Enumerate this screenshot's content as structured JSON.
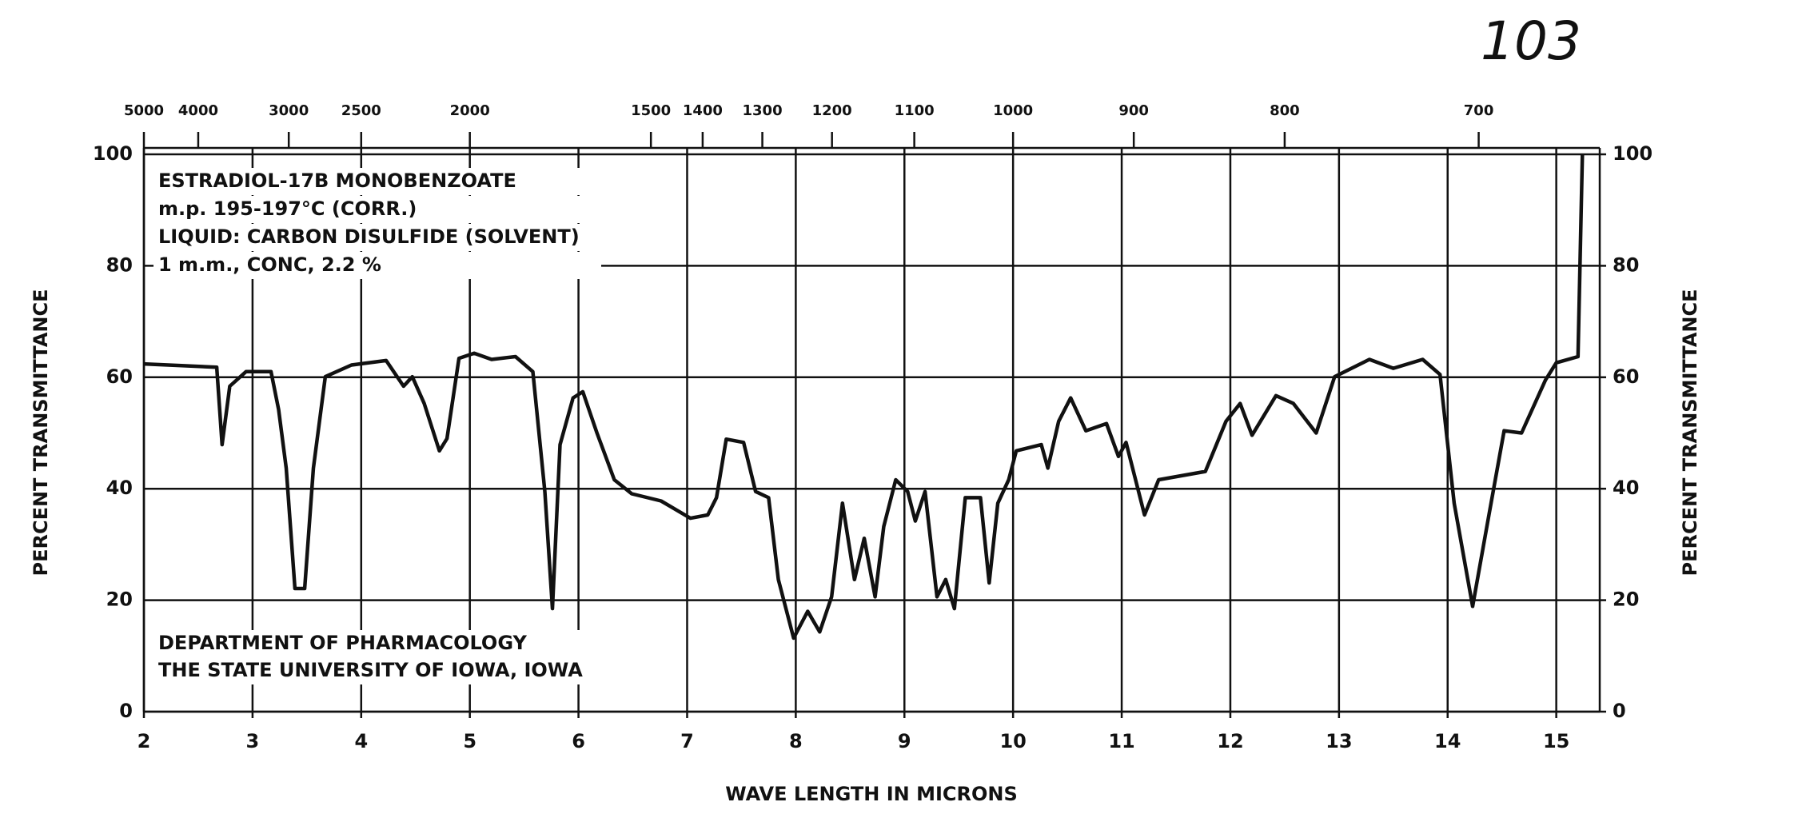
{
  "page_number": "103",
  "chart_data": {
    "type": "line",
    "annotations": [
      "ESTRADIOL-17B MONOBENZOATE",
      "m.p. 195-197°C (CORR.)",
      "LIQUID: CARBON DISULFIDE (SOLVENT)",
      "1 m.m., CONC, 2.2 %",
      "DEPARTMENT OF PHARMACOLOGY",
      "THE STATE UNIVERSITY OF IOWA, IOWA"
    ],
    "xlabel": "WAVE LENGTH IN MICRONS",
    "ylabel": "PERCENT TRANSMITTANCE",
    "y2label": "PERCENT TRANSMITTANCE",
    "color": "#111111",
    "grid": true,
    "x": [
      2.0,
      2.67,
      2.72,
      2.79,
      2.94,
      3.17,
      3.24,
      3.31,
      3.39,
      3.48,
      3.56,
      3.67,
      3.91,
      4.23,
      4.39,
      4.47,
      4.58,
      4.72,
      4.79,
      4.9,
      5.04,
      5.2,
      5.42,
      5.58,
      5.69,
      5.76,
      5.83,
      5.95,
      6.04,
      6.17,
      6.33,
      6.49,
      6.76,
      7.03,
      7.19,
      7.27,
      7.36,
      7.52,
      7.63,
      7.75,
      7.84,
      7.98,
      8.11,
      8.22,
      8.33,
      8.43,
      8.54,
      8.63,
      8.73,
      8.81,
      8.92,
      9.03,
      9.1,
      9.19,
      9.3,
      9.38,
      9.46,
      9.56,
      9.7,
      9.78,
      9.86,
      9.96,
      10.03,
      10.26,
      10.32,
      10.42,
      10.53,
      10.67,
      10.86,
      10.97,
      11.04,
      11.21,
      11.34,
      11.77,
      11.96,
      12.09,
      12.2,
      12.42,
      12.58,
      12.79,
      12.96,
      13.28,
      13.5,
      13.77,
      13.93,
      14.06,
      14.23,
      14.38,
      14.52,
      14.68,
      14.9,
      15.0,
      15.2,
      15.24
    ],
    "values": [
      62.4,
      61.8,
      47.9,
      58.4,
      61,
      61,
      54.2,
      43.7,
      22.1,
      22.1,
      43.7,
      60.1,
      62.2,
      63,
      58.4,
      60.1,
      55.3,
      46.8,
      49,
      63.4,
      64.3,
      63.2,
      63.7,
      61,
      39.5,
      18.5,
      47.9,
      56.3,
      57.4,
      50,
      41.6,
      39.1,
      37.8,
      34.7,
      35.3,
      38.4,
      48.9,
      48.3,
      39.5,
      38.4,
      23.7,
      13.2,
      18,
      14.3,
      20.6,
      37.4,
      23.7,
      31.1,
      20.6,
      33.2,
      41.6,
      39.5,
      34.2,
      39.5,
      20.6,
      23.7,
      18.5,
      38.4,
      38.4,
      23.1,
      37.4,
      41.6,
      46.8,
      47.9,
      43.7,
      52.1,
      56.3,
      50.4,
      51.7,
      45.8,
      48.3,
      35.3,
      41.6,
      43.1,
      52.1,
      55.3,
      49.6,
      56.7,
      55.3,
      50,
      60.1,
      63.2,
      61.6,
      63.2,
      60.5,
      37.4,
      18.9,
      35.3,
      50.4,
      50,
      59.5,
      62.6,
      63.7,
      100
    ],
    "xlim": [
      2,
      15.4
    ],
    "xticks": [
      2,
      3,
      4,
      5,
      6,
      7,
      8,
      9,
      10,
      11,
      12,
      13,
      14,
      15
    ],
    "x2ticks": [
      5000,
      4000,
      3000,
      2500,
      2000,
      1500,
      1400,
      1300,
      1200,
      1100,
      1000,
      900,
      800,
      700
    ],
    "ylim": [
      0,
      100
    ],
    "yticks": [
      0,
      20,
      40,
      60,
      80,
      100
    ],
    "y2lim": [
      0,
      100
    ],
    "y2ticks": [
      0,
      20,
      40,
      60,
      80,
      100
    ]
  }
}
